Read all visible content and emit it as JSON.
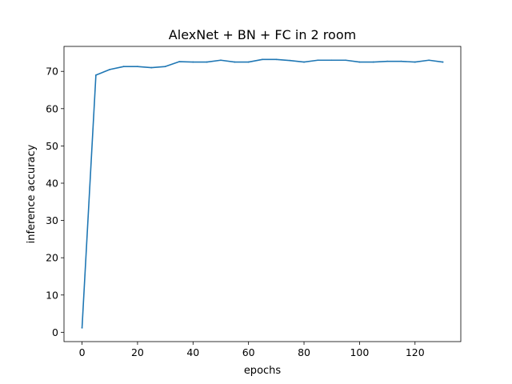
{
  "chart_data": {
    "type": "line",
    "title": "AlexNet + BN + FC in 2 room",
    "xlabel": "epochs",
    "ylabel": "inference accuracy",
    "xlim": [
      -6.5,
      136.5
    ],
    "ylim": [
      -2.5,
      76.7
    ],
    "xticks": [
      0,
      20,
      40,
      60,
      80,
      100,
      120
    ],
    "yticks": [
      0,
      10,
      20,
      30,
      40,
      50,
      60,
      70
    ],
    "grid": false,
    "legend": "none",
    "series": [
      {
        "color": "#1f77b4",
        "x": [
          0,
          5,
          10,
          15,
          20,
          25,
          30,
          35,
          40,
          45,
          50,
          55,
          60,
          65,
          70,
          75,
          80,
          85,
          90,
          95,
          100,
          105,
          110,
          115,
          120,
          125,
          130
        ],
        "y": [
          1.2,
          69.0,
          70.5,
          71.3,
          71.3,
          71.0,
          71.3,
          72.6,
          72.5,
          72.5,
          73.0,
          72.5,
          72.5,
          73.2,
          73.2,
          72.9,
          72.5,
          73.0,
          73.0,
          73.0,
          72.5,
          72.5,
          72.7,
          72.7,
          72.5,
          73.0,
          72.5
        ]
      }
    ]
  }
}
